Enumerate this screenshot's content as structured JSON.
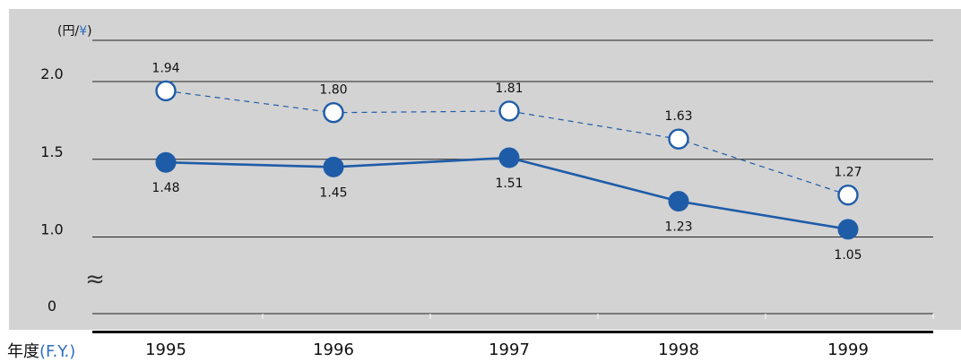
{
  "chart_data": {
    "type": "line",
    "unit_label": "(円/",
    "unit_symbol": "¥",
    "unit_close": ")",
    "x_label_main": "年度",
    "x_label_accent": "(F.Y.)",
    "categories": [
      "1995",
      "1996",
      "1997",
      "1998",
      "1999"
    ],
    "y_ticks": [
      "0",
      "1.0",
      "1.5",
      "2.0"
    ],
    "axis_break": "≈",
    "ylim_display": [
      1.0,
      2.0
    ],
    "grid": true,
    "series": [
      {
        "style": "dashed-open-circles",
        "color": "#1f5ca8",
        "values": [
          1.94,
          1.8,
          1.81,
          1.63,
          1.27
        ],
        "labels": [
          "1.94",
          "1.80",
          "1.81",
          "1.63",
          "1.27"
        ]
      },
      {
        "style": "solid-filled-circles",
        "color": "#1f5ca8",
        "values": [
          1.48,
          1.45,
          1.51,
          1.23,
          1.05
        ],
        "labels": [
          "1.48",
          "1.45",
          "1.51",
          "1.23",
          "1.05"
        ]
      }
    ]
  }
}
